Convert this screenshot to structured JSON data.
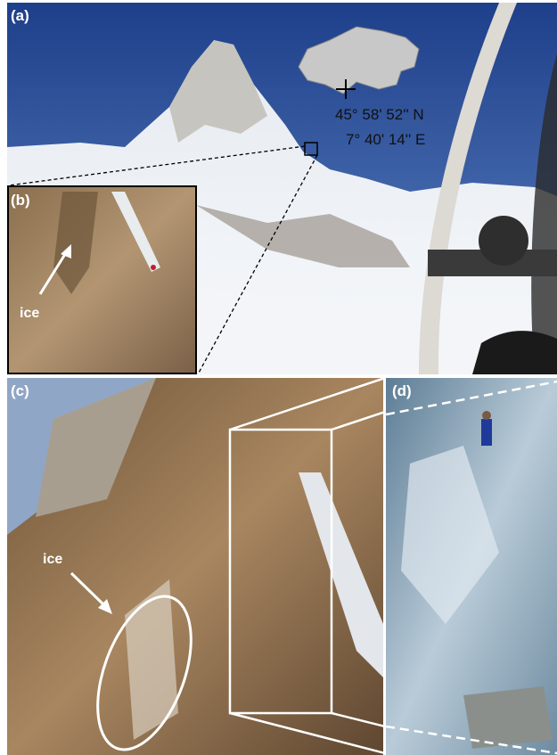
{
  "panels": [
    {
      "label": "(a)",
      "coordinates": {
        "latitude": "45° 58' 52'' N",
        "longitude": "7° 40' 14'' E"
      }
    },
    {
      "label": "(b)",
      "annotation": "ice"
    },
    {
      "label": "(c)",
      "annotation": "ice"
    },
    {
      "label": "(d)"
    }
  ]
}
